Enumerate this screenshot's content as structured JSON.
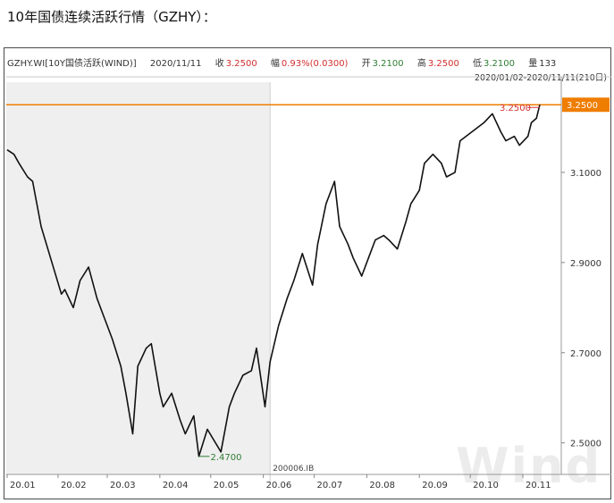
{
  "page": {
    "title": "10年国债连续活跃行情（GZHY）："
  },
  "info": {
    "code": "GZHY.WI[10Y国债活跃(WIND)]",
    "date": "2020/11/11",
    "close_label": "收",
    "close_value": "3.2500",
    "change_label": "幅",
    "change_value": "0.93%(0.0300)",
    "open_label": "开",
    "open_value": "3.2100",
    "high_label": "高",
    "high_value": "3.2500",
    "low_label": "低",
    "low_value": "3.2100",
    "volume_label": "量",
    "volume_value": "133",
    "range_text": "2020/01/02-2020/11/11(210日)"
  },
  "chart_data": {
    "type": "line",
    "x": [
      "2020-01-02",
      "2020-01-06",
      "2020-01-09",
      "2020-01-14",
      "2020-01-17",
      "2020-01-22",
      "2020-02-03",
      "2020-02-05",
      "2020-02-10",
      "2020-02-14",
      "2020-02-19",
      "2020-02-24",
      "2020-02-28",
      "2020-03-04",
      "2020-03-09",
      "2020-03-12",
      "2020-03-16",
      "2020-03-19",
      "2020-03-24",
      "2020-03-27",
      "2020-04-01",
      "2020-04-03",
      "2020-04-08",
      "2020-04-13",
      "2020-04-16",
      "2020-04-21",
      "2020-04-24",
      "2020-04-29",
      "2020-05-07",
      "2020-05-12",
      "2020-05-15",
      "2020-05-20",
      "2020-05-25",
      "2020-05-28",
      "2020-06-02",
      "2020-06-05",
      "2020-06-10",
      "2020-06-15",
      "2020-06-19",
      "2020-06-24",
      "2020-06-30",
      "2020-07-03",
      "2020-07-08",
      "2020-07-13",
      "2020-07-16",
      "2020-07-21",
      "2020-07-24",
      "2020-07-29",
      "2020-08-03",
      "2020-08-06",
      "2020-08-11",
      "2020-08-14",
      "2020-08-19",
      "2020-08-24",
      "2020-08-27",
      "2020-09-01",
      "2020-09-04",
      "2020-09-09",
      "2020-09-14",
      "2020-09-17",
      "2020-09-22",
      "2020-09-25",
      "2020-10-09",
      "2020-10-14",
      "2020-10-19",
      "2020-10-22",
      "2020-10-27",
      "2020-10-30",
      "2020-11-04",
      "2020-11-06",
      "2020-11-09",
      "2020-11-11"
    ],
    "values": [
      3.15,
      3.14,
      3.12,
      3.09,
      3.08,
      2.98,
      2.83,
      2.84,
      2.8,
      2.86,
      2.89,
      2.82,
      2.78,
      2.73,
      2.67,
      2.61,
      2.52,
      2.67,
      2.71,
      2.72,
      2.61,
      2.58,
      2.61,
      2.55,
      2.52,
      2.56,
      2.47,
      2.53,
      2.48,
      2.58,
      2.61,
      2.65,
      2.66,
      2.71,
      2.58,
      2.68,
      2.76,
      2.82,
      2.86,
      2.92,
      2.85,
      2.94,
      3.03,
      3.08,
      2.98,
      2.94,
      2.91,
      2.87,
      2.92,
      2.95,
      2.96,
      2.95,
      2.93,
      2.99,
      3.03,
      3.06,
      3.12,
      3.14,
      3.12,
      3.09,
      3.1,
      3.17,
      3.21,
      3.23,
      3.19,
      3.17,
      3.18,
      3.16,
      3.18,
      3.21,
      3.22,
      3.25
    ],
    "title": "",
    "xlabel": "",
    "ylabel": "",
    "x_tick_labels": [
      "20.01",
      "20.02",
      "20.03",
      "20.04",
      "20.05",
      "20.06",
      "20.07",
      "20.08",
      "20.09",
      "20.10",
      "20.11"
    ],
    "y_ticks": [
      2.5,
      2.7,
      2.9,
      3.1
    ],
    "y_tick_labels": [
      "2.5000",
      "2.7000",
      "2.9000",
      "3.1000"
    ],
    "ylim": [
      2.43,
      3.3
    ],
    "last_price_label": "3.2500",
    "last_price_value": 3.25,
    "max_annotation": "3.2500",
    "min_annotation": "2.4700",
    "min_value": 2.47,
    "min_date": "2020-04-24",
    "axis_footnote": "200006.IB",
    "shaded_range": [
      "2020-01-02",
      "2020-06-05"
    ],
    "grid": false
  },
  "colors": {
    "line": "#111111",
    "price_line": "#ef7d00",
    "up": "#d32f2f",
    "down": "#2e7d32",
    "shade": "#efefef"
  },
  "watermark": "Wind"
}
